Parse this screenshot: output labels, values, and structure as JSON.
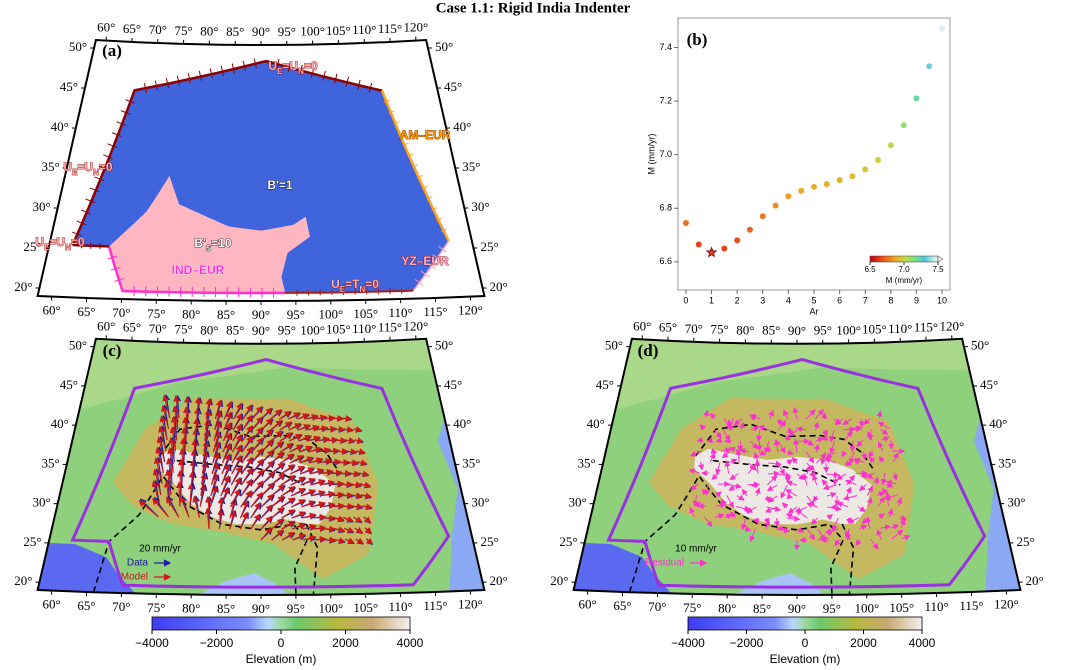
{
  "title": "Case 1.1: Rigid India Indenter",
  "map_axes": {
    "lonlim": [
      58,
      122
    ],
    "latlim": [
      19,
      51
    ],
    "lon_ticks": [
      {
        "value": 60,
        "label": "60°"
      },
      {
        "value": 65,
        "label": "65°"
      },
      {
        "value": 70,
        "label": "70°"
      },
      {
        "value": 75,
        "label": "75°"
      },
      {
        "value": 80,
        "label": "80°"
      },
      {
        "value": 85,
        "label": "85°"
      },
      {
        "value": 90,
        "label": "90°"
      },
      {
        "value": 95,
        "label": "95°"
      },
      {
        "value": 100,
        "label": "100°"
      },
      {
        "value": 105,
        "label": "105°"
      },
      {
        "value": 110,
        "label": "110°"
      },
      {
        "value": 115,
        "label": "115°"
      },
      {
        "value": 120,
        "label": "120°"
      }
    ],
    "lat_ticks": [
      {
        "value": 20,
        "label": "20°"
      },
      {
        "value": 25,
        "label": "25°"
      },
      {
        "value": 30,
        "label": "30°"
      },
      {
        "value": 35,
        "label": "35°"
      },
      {
        "value": 40,
        "label": "40°"
      },
      {
        "value": 45,
        "label": "45°"
      },
      {
        "value": 50,
        "label": "50°"
      }
    ]
  },
  "panel_a": {
    "label": "(a)",
    "annotations": [
      [
        "U",
        "E",
        "=U",
        "N",
        "=0"
      ],
      [
        "U",
        "E",
        "=U",
        "N",
        "=0"
      ],
      [
        "U",
        "E",
        "=U",
        "N",
        "=0"
      ],
      [
        "B'=1"
      ],
      [
        "B'",
        "S",
        "=10"
      ],
      [
        "AM–EUR"
      ],
      [
        "YZ–EUR"
      ],
      [
        "IND–EUR"
      ],
      [
        "U",
        "E",
        "=T",
        "N",
        "=0"
      ]
    ]
  },
  "chart_data": {
    "type": "scatter",
    "panel_label": "(b)",
    "x_label": "Ar",
    "y_label": "M (mm/yr)",
    "x": [
      0,
      0.5,
      1,
      1.5,
      2,
      2.5,
      3,
      3.5,
      4,
      4.5,
      5,
      5.5,
      6,
      6.5,
      7,
      7.5,
      8,
      8.5,
      9,
      9.5,
      10
    ],
    "values": [
      6.745,
      6.665,
      6.635,
      6.65,
      6.68,
      6.72,
      6.77,
      6.81,
      6.845,
      6.865,
      6.88,
      6.89,
      6.905,
      6.92,
      6.945,
      6.98,
      7.035,
      7.11,
      7.21,
      7.33,
      7.47
    ],
    "marker": [
      "circle",
      "circle",
      "star",
      "circle",
      "circle",
      "circle",
      "circle",
      "circle",
      "circle",
      "circle",
      "circle",
      "circle",
      "circle",
      "circle",
      "circle",
      "circle",
      "circle",
      "circle",
      "circle",
      "circle",
      "circle"
    ],
    "xlim": [
      -0.31,
      10.31
    ],
    "ylim": [
      6.495,
      7.51
    ],
    "xticks": [
      0,
      1,
      2,
      3,
      4,
      5,
      6,
      7,
      8,
      9,
      10
    ],
    "yticks": [
      6.6,
      6.8,
      {
        "value": 7,
        "label": "7.0"
      },
      7.2,
      7.4
    ],
    "colorbar": {
      "label": "M (mm/yr)",
      "lim": [
        6.5,
        7.5
      ],
      "ticks": [
        6.5,
        {
          "value": 7,
          "label": "7.0"
        },
        7.5
      ]
    }
  },
  "panel_c": {
    "label": "(c)",
    "scale": "20 mm/yr",
    "legend": [
      "Data",
      "Model"
    ]
  },
  "panel_d": {
    "label": "(d)",
    "scale": "10 mm/yr",
    "legend": [
      "Residual"
    ]
  },
  "elevation_colorbar": {
    "label": "Elevation (m)",
    "lim": [
      -4000,
      4000
    ],
    "ticks": [
      {
        "value": -4000,
        "label": "−4000"
      },
      {
        "value": -2000,
        "label": "−2000"
      },
      0,
      2000,
      4000
    ]
  }
}
